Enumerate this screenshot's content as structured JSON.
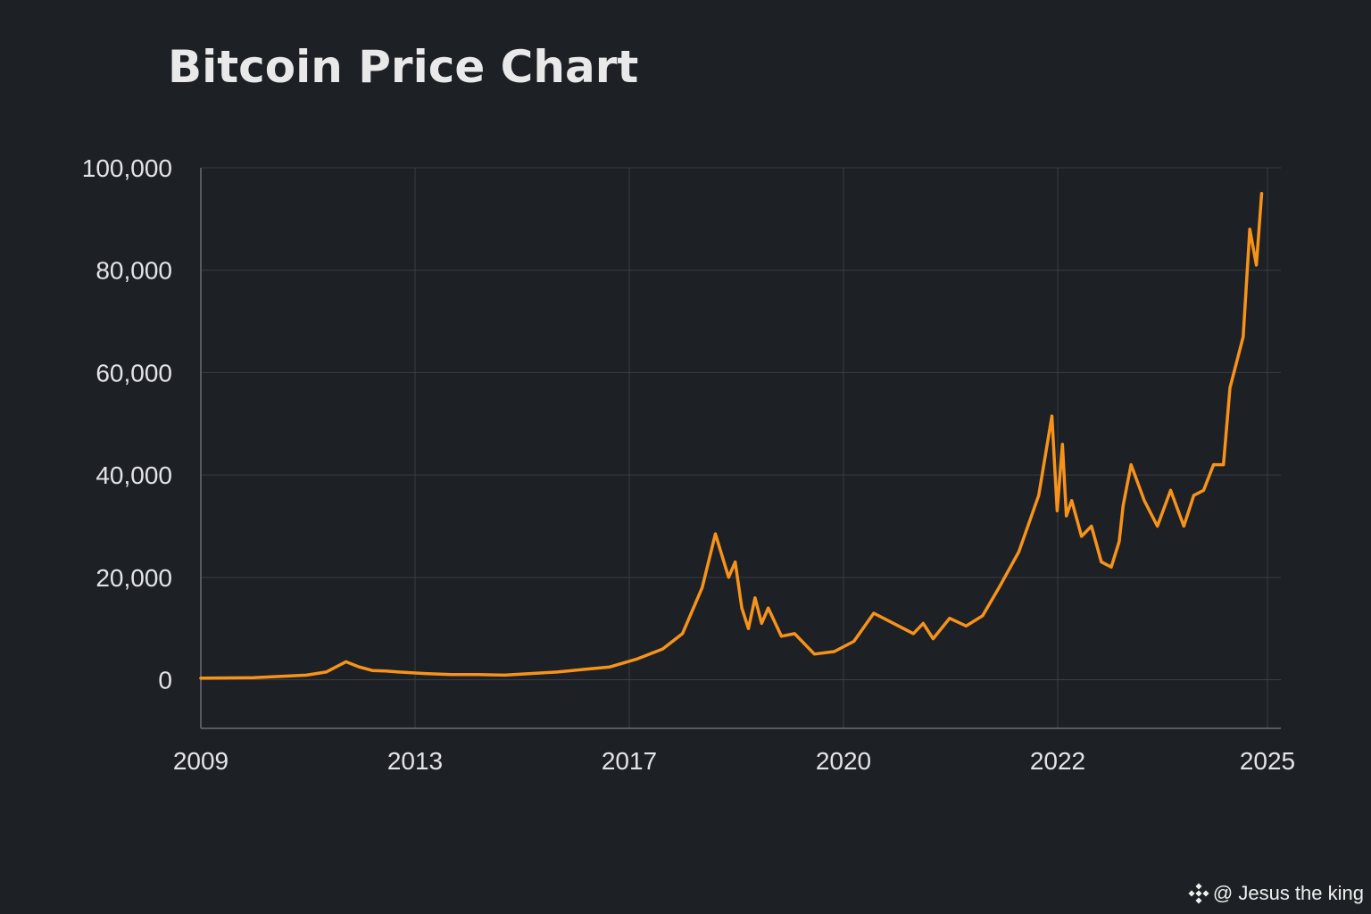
{
  "colors": {
    "background": "#1d2025",
    "line": "#f7931a",
    "grid": "#3a3d44",
    "axis": "#6b6e75",
    "text": "#e4e4e6"
  },
  "chart_data": {
    "type": "line",
    "title": "Bitcoin Price Chart",
    "xlabel": "",
    "ylabel": "",
    "grid": true,
    "legend": "none",
    "x_ticks": [
      "2009",
      "2013",
      "2017",
      "2020",
      "2022",
      "2025"
    ],
    "y_ticks": [
      "100,000",
      "80,000",
      "60,000",
      "40,000",
      "20,000",
      "0"
    ],
    "y_tick_values": [
      100000,
      80000,
      60000,
      40000,
      20000,
      0
    ],
    "ylim": [
      -9500,
      100000
    ],
    "xlim": [
      2009.0,
      2025.1
    ],
    "series": [
      {
        "name": "",
        "x": [
          2009.0,
          2009.8,
          2010.6,
          2010.9,
          2011.2,
          2011.4,
          2011.6,
          2011.8,
          2012.0,
          2012.4,
          2012.8,
          2013.2,
          2013.6,
          2014.0,
          2014.4,
          2014.8,
          2015.2,
          2015.6,
          2016.0,
          2016.3,
          2016.6,
          2016.8,
          2017.0,
          2017.1,
          2017.2,
          2017.3,
          2017.4,
          2017.5,
          2017.6,
          2017.8,
          2018.0,
          2018.3,
          2018.6,
          2018.9,
          2019.2,
          2019.5,
          2019.8,
          2019.95,
          2020.1,
          2020.35,
          2020.6,
          2020.85,
          2021.1,
          2021.4,
          2021.7,
          2021.9,
          2021.98,
          2022.06,
          2022.12,
          2022.2,
          2022.35,
          2022.5,
          2022.65,
          2022.8,
          2022.92,
          2022.98,
          2023.1,
          2023.3,
          2023.5,
          2023.7,
          2023.9,
          2024.05,
          2024.2,
          2024.35,
          2024.5,
          2024.6,
          2024.7,
          2024.8,
          2024.9,
          2025.0,
          2025.08
        ],
        "y": [
          300,
          400,
          900,
          1500,
          3500,
          2500,
          1800,
          1700,
          1500,
          1200,
          1000,
          1000,
          900,
          1200,
          1500,
          2000,
          2500,
          4000,
          6000,
          9000,
          18000,
          28500,
          20000,
          23000,
          14000,
          10000,
          16000,
          11000,
          14000,
          8500,
          9000,
          5000,
          5500,
          7500,
          13000,
          11000,
          9000,
          11000,
          8000,
          12000,
          10500,
          12500,
          18000,
          25000,
          36000,
          51500,
          33000,
          46000,
          32000,
          35000,
          28000,
          30000,
          23000,
          22000,
          27000,
          34000,
          42000,
          35000,
          30000,
          37000,
          30000,
          36000,
          37000,
          42000,
          42000,
          57000,
          62000,
          67000,
          88000,
          81000,
          95000
        ]
      }
    ]
  },
  "watermark": {
    "text": "@ Jesus the king",
    "icon": "binance-logo-icon"
  }
}
